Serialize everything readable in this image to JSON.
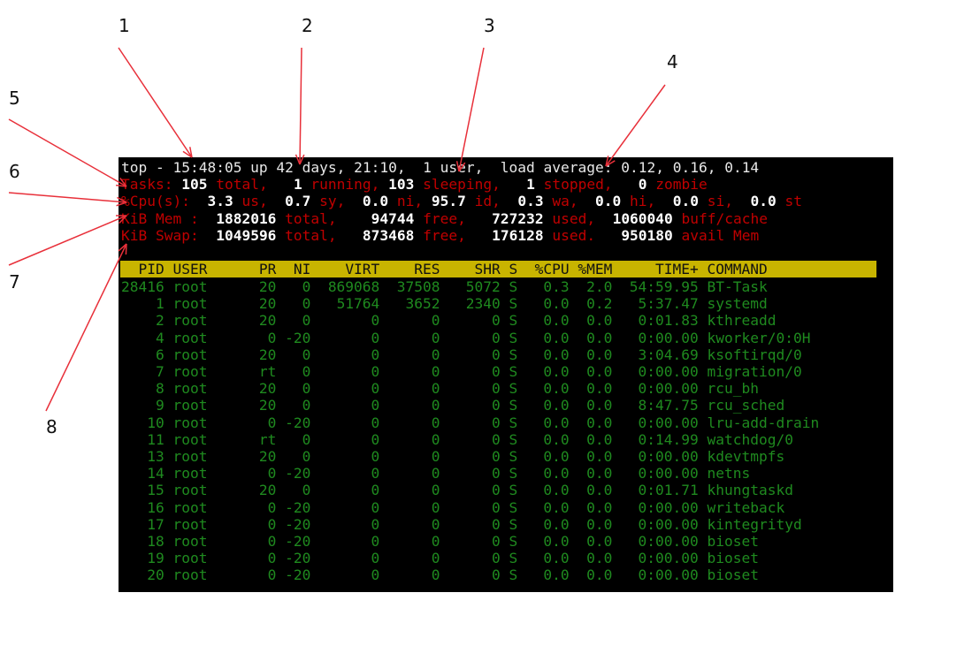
{
  "summary": {
    "line1": "top - 15:48:05 up 42 days, 21:10,  1 user,  load average: 0.12, 0.16, 0.14",
    "tasks": [
      {
        "t": "Tasks:",
        "c": "r"
      },
      {
        "t": " 105",
        "c": "b"
      },
      {
        "t": " total,",
        "c": "r"
      },
      {
        "t": "   1",
        "c": "b"
      },
      {
        "t": " running,",
        "c": "r"
      },
      {
        "t": " 103",
        "c": "b"
      },
      {
        "t": " sleeping,",
        "c": "r"
      },
      {
        "t": "   1",
        "c": "b"
      },
      {
        "t": " stopped,",
        "c": "r"
      },
      {
        "t": "   0",
        "c": "b"
      },
      {
        "t": " zombie",
        "c": "r"
      }
    ],
    "cpu": [
      {
        "t": "%Cpu(s):",
        "c": "r"
      },
      {
        "t": "  3.3",
        "c": "b"
      },
      {
        "t": " us,",
        "c": "r"
      },
      {
        "t": "  0.7",
        "c": "b"
      },
      {
        "t": " sy,",
        "c": "r"
      },
      {
        "t": "  0.0",
        "c": "b"
      },
      {
        "t": " ni,",
        "c": "r"
      },
      {
        "t": " 95.7",
        "c": "b"
      },
      {
        "t": " id,",
        "c": "r"
      },
      {
        "t": "  0.3",
        "c": "b"
      },
      {
        "t": " wa,",
        "c": "r"
      },
      {
        "t": "  0.0",
        "c": "b"
      },
      {
        "t": " hi,",
        "c": "r"
      },
      {
        "t": "  0.0",
        "c": "b"
      },
      {
        "t": " si,",
        "c": "r"
      },
      {
        "t": "  0.0",
        "c": "b"
      },
      {
        "t": " st",
        "c": "r"
      }
    ],
    "mem": [
      {
        "t": "KiB Mem :",
        "c": "r"
      },
      {
        "t": "  1882016",
        "c": "b"
      },
      {
        "t": " total,",
        "c": "r"
      },
      {
        "t": "    94744",
        "c": "b"
      },
      {
        "t": " free,",
        "c": "r"
      },
      {
        "t": "   727232",
        "c": "b"
      },
      {
        "t": " used,",
        "c": "r"
      },
      {
        "t": "  1060040",
        "c": "b"
      },
      {
        "t": " buff/cache",
        "c": "r"
      }
    ],
    "swap": [
      {
        "t": "KiB Swap:",
        "c": "r"
      },
      {
        "t": "  1049596",
        "c": "b"
      },
      {
        "t": " total,",
        "c": "r"
      },
      {
        "t": "   873468",
        "c": "b"
      },
      {
        "t": " free,",
        "c": "r"
      },
      {
        "t": "   176128",
        "c": "b"
      },
      {
        "t": " used.",
        "c": "r"
      },
      {
        "t": "   950180",
        "c": "b"
      },
      {
        "t": " avail Mem",
        "c": "r"
      }
    ]
  },
  "table": {
    "columns": [
      "PID",
      "USER",
      "PR",
      "NI",
      "VIRT",
      "RES",
      "SHR",
      "S",
      "%CPU",
      "%MEM",
      "TIME+",
      "COMMAND"
    ],
    "rows": [
      [
        "28416",
        "root",
        "20",
        "0",
        "869068",
        "37508",
        "5072",
        "S",
        "0.3",
        "2.0",
        "54:59.95",
        "BT-Task"
      ],
      [
        "1",
        "root",
        "20",
        "0",
        "51764",
        "3652",
        "2340",
        "S",
        "0.0",
        "0.2",
        "5:37.47",
        "systemd"
      ],
      [
        "2",
        "root",
        "20",
        "0",
        "0",
        "0",
        "0",
        "S",
        "0.0",
        "0.0",
        "0:01.83",
        "kthreadd"
      ],
      [
        "4",
        "root",
        "0",
        "-20",
        "0",
        "0",
        "0",
        "S",
        "0.0",
        "0.0",
        "0:00.00",
        "kworker/0:0H"
      ],
      [
        "6",
        "root",
        "20",
        "0",
        "0",
        "0",
        "0",
        "S",
        "0.0",
        "0.0",
        "3:04.69",
        "ksoftirqd/0"
      ],
      [
        "7",
        "root",
        "rt",
        "0",
        "0",
        "0",
        "0",
        "S",
        "0.0",
        "0.0",
        "0:00.00",
        "migration/0"
      ],
      [
        "8",
        "root",
        "20",
        "0",
        "0",
        "0",
        "0",
        "S",
        "0.0",
        "0.0",
        "0:00.00",
        "rcu_bh"
      ],
      [
        "9",
        "root",
        "20",
        "0",
        "0",
        "0",
        "0",
        "S",
        "0.0",
        "0.0",
        "8:47.75",
        "rcu_sched"
      ],
      [
        "10",
        "root",
        "0",
        "-20",
        "0",
        "0",
        "0",
        "S",
        "0.0",
        "0.0",
        "0:00.00",
        "lru-add-drain"
      ],
      [
        "11",
        "root",
        "rt",
        "0",
        "0",
        "0",
        "0",
        "S",
        "0.0",
        "0.0",
        "0:14.99",
        "watchdog/0"
      ],
      [
        "13",
        "root",
        "20",
        "0",
        "0",
        "0",
        "0",
        "S",
        "0.0",
        "0.0",
        "0:00.00",
        "kdevtmpfs"
      ],
      [
        "14",
        "root",
        "0",
        "-20",
        "0",
        "0",
        "0",
        "S",
        "0.0",
        "0.0",
        "0:00.00",
        "netns"
      ],
      [
        "15",
        "root",
        "20",
        "0",
        "0",
        "0",
        "0",
        "S",
        "0.0",
        "0.0",
        "0:01.71",
        "khungtaskd"
      ],
      [
        "16",
        "root",
        "0",
        "-20",
        "0",
        "0",
        "0",
        "S",
        "0.0",
        "0.0",
        "0:00.00",
        "writeback"
      ],
      [
        "17",
        "root",
        "0",
        "-20",
        "0",
        "0",
        "0",
        "S",
        "0.0",
        "0.0",
        "0:00.00",
        "kintegrityd"
      ],
      [
        "18",
        "root",
        "0",
        "-20",
        "0",
        "0",
        "0",
        "S",
        "0.0",
        "0.0",
        "0:00.00",
        "bioset"
      ],
      [
        "19",
        "root",
        "0",
        "-20",
        "0",
        "0",
        "0",
        "S",
        "0.0",
        "0.0",
        "0:00.00",
        "bioset"
      ],
      [
        "20",
        "root",
        "0",
        "-20",
        "0",
        "0",
        "0",
        "S",
        "0.0",
        "0.0",
        "0:00.00",
        "bioset"
      ]
    ]
  },
  "annotations": [
    "1",
    "2",
    "3",
    "4",
    "5",
    "6",
    "7",
    "8"
  ],
  "colors": {
    "header_bg": "#c8b400",
    "process_text": "#1f8a1f",
    "label_red": "#c00000",
    "arrow": "#e8303a"
  }
}
